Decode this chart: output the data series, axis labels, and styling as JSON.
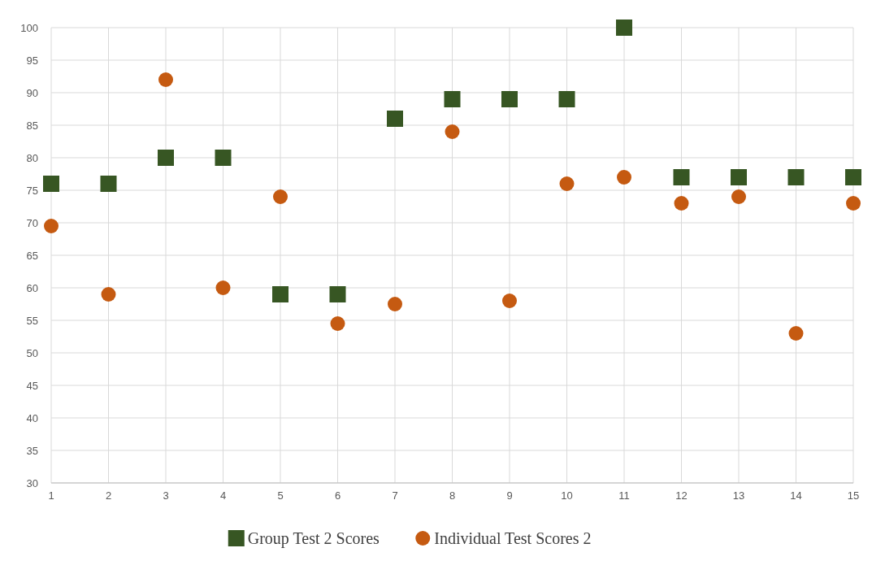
{
  "chart_data": {
    "type": "scatter",
    "x": [
      1,
      2,
      3,
      4,
      5,
      6,
      7,
      8,
      9,
      10,
      11,
      12,
      13,
      14,
      15
    ],
    "series": [
      {
        "name": "Group Test 2 Scores",
        "color": "#375623",
        "marker": "square",
        "values": [
          76,
          76,
          80,
          80,
          59,
          59,
          86,
          89,
          89,
          89,
          100,
          77,
          77,
          77,
          77
        ]
      },
      {
        "name": "Individual Test Scores 2",
        "color": "#c55a11",
        "marker": "circle",
        "values": [
          69.5,
          59,
          92,
          60,
          74,
          54.5,
          57.5,
          84,
          58,
          76,
          77,
          73,
          74,
          53,
          73
        ]
      }
    ],
    "xlim": [
      1,
      15
    ],
    "xticks": [
      1,
      2,
      3,
      4,
      5,
      6,
      7,
      8,
      9,
      10,
      11,
      12,
      13,
      14,
      15
    ],
    "ylim": [
      30,
      100
    ],
    "yticks": [
      30,
      35,
      40,
      45,
      50,
      55,
      60,
      65,
      70,
      75,
      80,
      85,
      90,
      95,
      100
    ],
    "grid": true,
    "legend": "bottom"
  }
}
